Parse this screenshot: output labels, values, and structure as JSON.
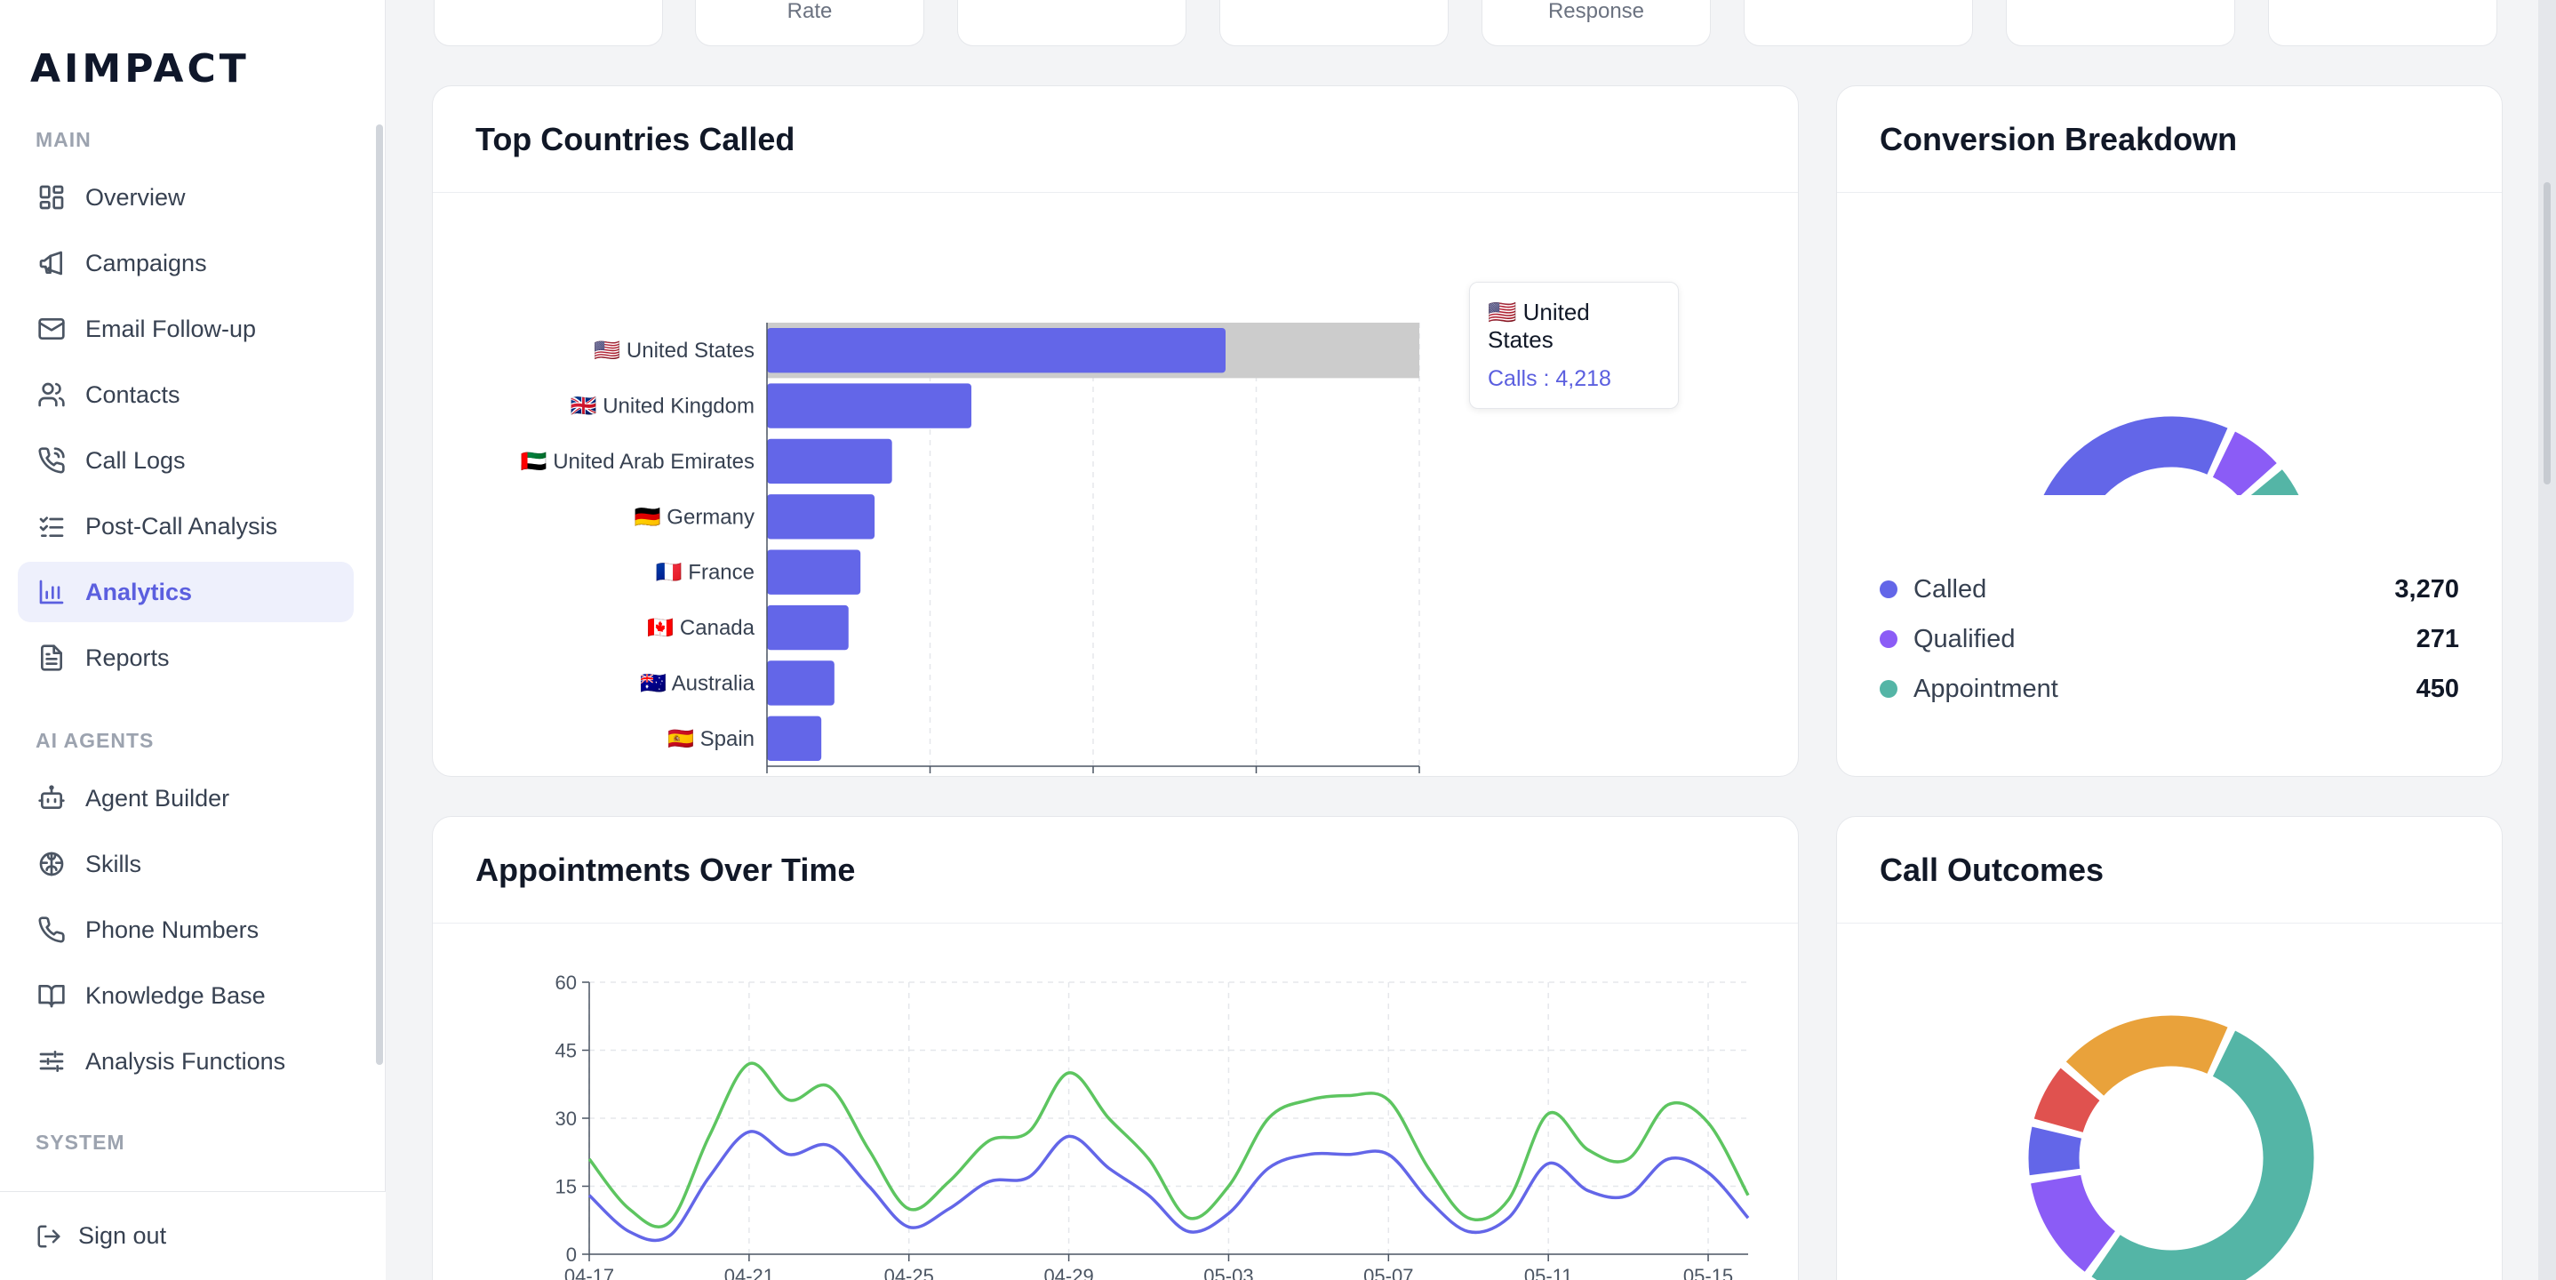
{
  "app": {
    "logo": "AIMPACT"
  },
  "sidebar": {
    "sections": [
      {
        "label": "MAIN"
      },
      {
        "label": "AI AGENTS"
      },
      {
        "label": "SYSTEM"
      }
    ],
    "items": [
      {
        "label": "Overview",
        "icon": "grid-icon"
      },
      {
        "label": "Campaigns",
        "icon": "megaphone-icon"
      },
      {
        "label": "Email Follow-up",
        "icon": "mail-icon"
      },
      {
        "label": "Contacts",
        "icon": "users-icon"
      },
      {
        "label": "Call Logs",
        "icon": "phone-call-icon"
      },
      {
        "label": "Post-Call Analysis",
        "icon": "checklist-icon"
      },
      {
        "label": "Analytics",
        "icon": "bar-chart-icon",
        "active": true
      },
      {
        "label": "Reports",
        "icon": "file-text-icon"
      },
      {
        "label": "Agent Builder",
        "icon": "bot-icon"
      },
      {
        "label": "Skills",
        "icon": "brain-icon"
      },
      {
        "label": "Phone Numbers",
        "icon": "phone-icon"
      },
      {
        "label": "Knowledge Base",
        "icon": "book-icon"
      },
      {
        "label": "Analysis Functions",
        "icon": "sliders-icon"
      }
    ],
    "sign_out": "Sign out"
  },
  "stats": {
    "labels": [
      "",
      "Rate",
      "",
      "",
      "Response",
      "",
      "",
      ""
    ]
  },
  "countries_panel": {
    "title": "Top Countries Called",
    "tooltip": {
      "country": "🇺🇸 United States",
      "value": "Calls : 4,218"
    }
  },
  "conversion_panel": {
    "title": "Conversion Breakdown",
    "legend": [
      {
        "name": "Called",
        "value": "3,270",
        "color": "#6366e8"
      },
      {
        "name": "Qualified",
        "value": "271",
        "color": "#8b5cf6"
      },
      {
        "name": "Appointment",
        "value": "450",
        "color": "#54b5a6"
      }
    ]
  },
  "appointments_panel": {
    "title": "Appointments Over Time"
  },
  "outcomes_panel": {
    "title": "Call Outcomes"
  },
  "chart_data": [
    {
      "type": "bar",
      "orientation": "horizontal",
      "categories": [
        "🇺🇸 United States",
        "🇬🇧 United Kingdom",
        "🇦🇪 United Arab Emirates",
        "🇩🇪 Germany",
        "🇫🇷 France",
        "🇨🇦 Canada",
        "🇦🇺 Australia",
        "🇪🇸 Spain"
      ],
      "values": [
        4218,
        1880,
        1150,
        990,
        860,
        750,
        620,
        500
      ],
      "xlim": [
        0,
        6000
      ],
      "xticks": [
        0,
        1500,
        3000,
        4500,
        6000
      ],
      "color": "#6366e8",
      "grid": true
    },
    {
      "type": "pie",
      "donut": true,
      "labels": [
        "Called",
        "Qualified",
        "Appointment"
      ],
      "values": [
        3270,
        271,
        450
      ],
      "colors": [
        "#6366e8",
        "#8b5cf6",
        "#54b5a6"
      ]
    },
    {
      "type": "line",
      "x": [
        "04-17",
        "04-18",
        "04-19",
        "04-20",
        "04-21",
        "04-22",
        "04-23",
        "04-24",
        "04-25",
        "04-26",
        "04-27",
        "04-28",
        "04-29",
        "04-30",
        "05-01",
        "05-02",
        "05-03",
        "05-04",
        "05-05",
        "05-06",
        "05-07",
        "05-08",
        "05-09",
        "05-10",
        "05-11",
        "05-12",
        "05-13",
        "05-14",
        "05-15",
        "05-16"
      ],
      "xticks": [
        "04-17",
        "04-21",
        "04-25",
        "04-29",
        "05-03",
        "05-07",
        "05-11",
        "05-15"
      ],
      "ylim": [
        0,
        60
      ],
      "yticks": [
        0,
        15,
        30,
        45,
        60
      ],
      "series": [
        {
          "values": [
            21,
            10,
            7,
            26,
            42,
            34,
            37,
            23,
            10,
            16,
            25,
            27,
            40,
            30,
            21,
            8,
            15,
            30,
            34,
            35,
            34,
            19,
            8,
            12,
            31,
            23,
            21,
            33,
            29,
            13
          ],
          "color": "#5dc560"
        },
        {
          "values": [
            13,
            5,
            4,
            17,
            27,
            22,
            24,
            15,
            6,
            10,
            16,
            17,
            26,
            19,
            13,
            5,
            9,
            19,
            22,
            22,
            22,
            12,
            5,
            8,
            20,
            14,
            13,
            21,
            18,
            8
          ],
          "color": "#6366e8"
        }
      ],
      "grid": true
    },
    {
      "type": "pie",
      "donut": true,
      "values": [
        540,
        130,
        65,
        75,
        210
      ],
      "colors": [
        "#54b5a6",
        "#8b5cf6",
        "#6366e8",
        "#e0524f",
        "#e9a23b"
      ]
    }
  ]
}
